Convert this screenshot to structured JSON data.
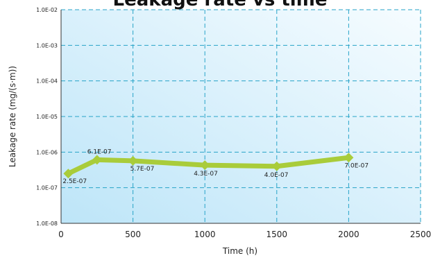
{
  "chart_data": {
    "type": "line",
    "title": "Leakage rate vs time",
    "xlabel": "Time (h)",
    "ylabel": "Leakage rate (mg/(s·m))",
    "x_ticks": [
      "0",
      "500",
      "1000",
      "1500",
      "2000",
      "2500"
    ],
    "y_ticks": [
      "1.0E-08",
      "1.0E-07",
      "1.0E-06",
      "1.0E-05",
      "1.0E-04",
      "1.0E-03",
      "1.0E-02"
    ],
    "xlim": [
      0,
      2500
    ],
    "ylim": [
      1e-08,
      0.01
    ],
    "y_scale": "log",
    "grid": "dashed",
    "series": [
      {
        "x": [
          50,
          250,
          500,
          1000,
          1500,
          2000
        ],
        "y": [
          2.5e-07,
          6.1e-07,
          5.7e-07,
          4.3e-07,
          4e-07,
          7e-07
        ],
        "labels": [
          "2.5E-07",
          "6.1E-07",
          "5.7E-07",
          "4.3E-07",
          "4.0E-07",
          "7.0E-07"
        ]
      }
    ],
    "colors": {
      "line": "#a9cc3a",
      "grid": "#27a3c8",
      "bg_top": "#f6fcff",
      "bg_bottom": "#bde5f8",
      "axis": "#333333"
    }
  }
}
